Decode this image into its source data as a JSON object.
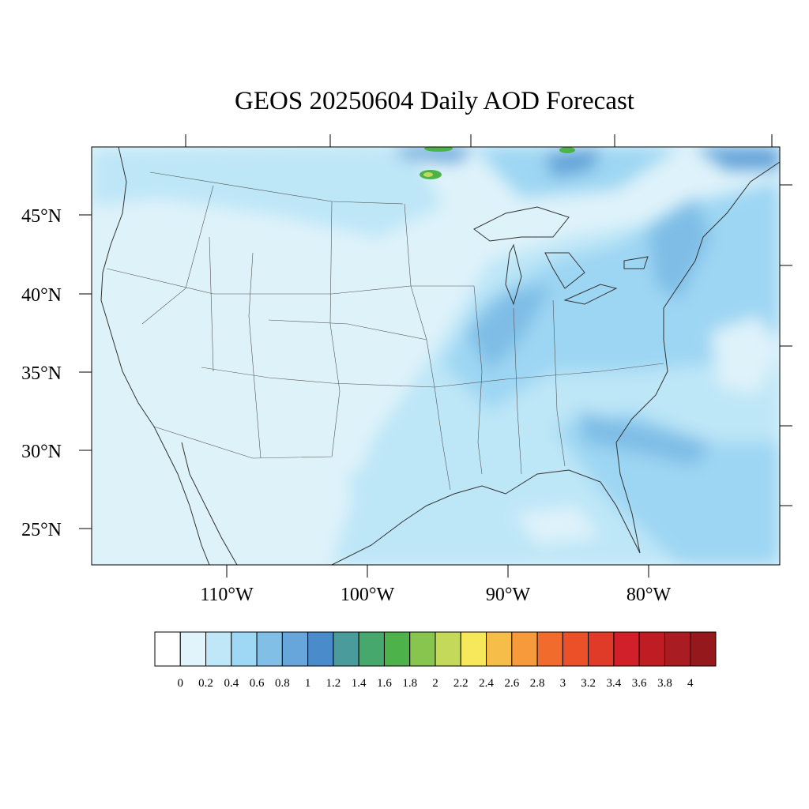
{
  "title": "GEOS 20250604 Daily AOD Forecast",
  "map": {
    "lat_labels": [
      "45°N",
      "40°N",
      "35°N",
      "30°N",
      "25°N"
    ],
    "lon_labels": [
      "110°W",
      "100°W",
      "90°W",
      "80°W"
    ],
    "colors": {
      "base": "#def2fa",
      "band1": "#bde6f7",
      "band2": "#9dd6f3",
      "band3": "#7fbde6",
      "band4": "#62a2d8",
      "green": "#4db24a",
      "yellow_green": "#c4d95a",
      "border": "#333333"
    }
  },
  "colorbar": {
    "labels": [
      "0",
      "0.2",
      "0.4",
      "0.6",
      "0.8",
      "1",
      "1.2",
      "1.4",
      "1.6",
      "1.8",
      "2",
      "2.2",
      "2.4",
      "2.6",
      "2.8",
      "3",
      "3.2",
      "3.4",
      "3.6",
      "3.8",
      "4"
    ],
    "colors": [
      "#ffffff",
      "#e1f3fb",
      "#bfe7f8",
      "#9fd8f4",
      "#82bfe6",
      "#66a6db",
      "#4a8ccb",
      "#4a9c9c",
      "#46a86c",
      "#4db24a",
      "#88c54e",
      "#c4d95a",
      "#f6e75b",
      "#f7bd49",
      "#f69a3b",
      "#f16c2c",
      "#ea5129",
      "#e03a28",
      "#d2202a",
      "#be1d24",
      "#a91c21",
      "#94181c"
    ]
  }
}
